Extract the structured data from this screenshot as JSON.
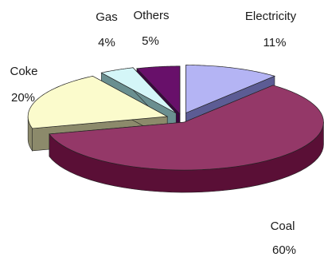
{
  "chart_data": {
    "type": "pie",
    "style": "3d-exploded",
    "title": "",
    "legend": "none",
    "categories": [
      "Electricity",
      "Coal",
      "Coke",
      "Gas",
      "Others"
    ],
    "values": [
      11,
      60,
      20,
      4,
      5
    ],
    "slices": [
      {
        "label": "Electricity",
        "display_label": "Electricity",
        "value": 11,
        "value_label": "11%",
        "top_color": "#b4b4f4",
        "side_color": "#5c5c94"
      },
      {
        "label": "Coal",
        "display_label": "Coal",
        "value": 60,
        "value_label": "60%",
        "top_color": "#943868",
        "side_color": "#5a0f36"
      },
      {
        "label": "Coke",
        "display_label": "Coke",
        "value": 20,
        "value_label": "20%",
        "top_color": "#fbfbcc",
        "side_color": "#8c8a6b"
      },
      {
        "label": "Gas",
        "display_label": "Gas",
        "value": 4,
        "value_label": "4%",
        "top_color": "#d4f6f8",
        "side_color": "#6a8f90"
      },
      {
        "label": "Others",
        "display_label": "Others",
        "value": 5,
        "value_label": "5%",
        "top_color": "#68106a",
        "side_color": "#3d0340"
      }
    ]
  }
}
